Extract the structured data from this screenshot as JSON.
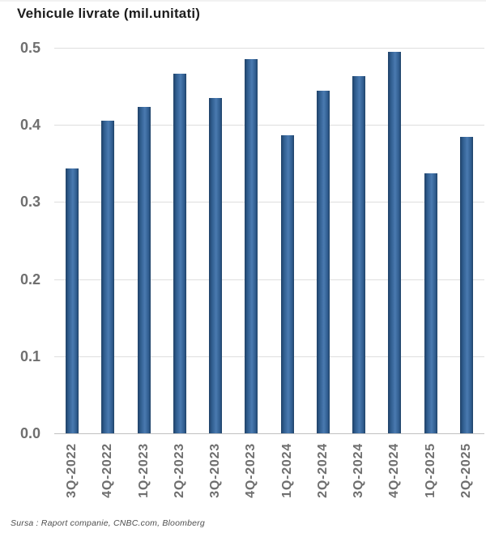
{
  "title": "Vehicule livrate (mil.unitati)",
  "source_note": "Sursa : Raport companie, CNBC.com, Bloomberg",
  "colors": {
    "bar_dark": "#1f4166",
    "bar_mid": "#2f5c8e",
    "bar_light": "#4a7ab0",
    "gridline": "#dedede",
    "axis_line": "#c0c0c0",
    "tick_label": "#6f6f6f",
    "title_text": "#1d1d1d"
  },
  "chart_data": {
    "type": "bar",
    "title": "Vehicule livrate (mil.unitati)",
    "xlabel": "",
    "ylabel": "",
    "categories": [
      "3Q-2022",
      "4Q-2022",
      "1Q-2023",
      "2Q-2023",
      "3Q-2023",
      "4Q-2023",
      "1Q-2024",
      "2Q-2024",
      "3Q-2024",
      "4Q-2024",
      "1Q-2025",
      "2Q-2025"
    ],
    "values": [
      0.344,
      0.406,
      0.423,
      0.466,
      0.435,
      0.485,
      0.387,
      0.444,
      0.463,
      0.495,
      0.337,
      0.384
    ],
    "ylim": [
      0.0,
      0.5
    ],
    "ytick_labels": [
      "0.0",
      "0.1",
      "0.2",
      "0.3",
      "0.4",
      "0.5"
    ],
    "grid": true,
    "legend": false,
    "annotation": "Sursa : Raport companie, CNBC.com, Bloomberg"
  }
}
